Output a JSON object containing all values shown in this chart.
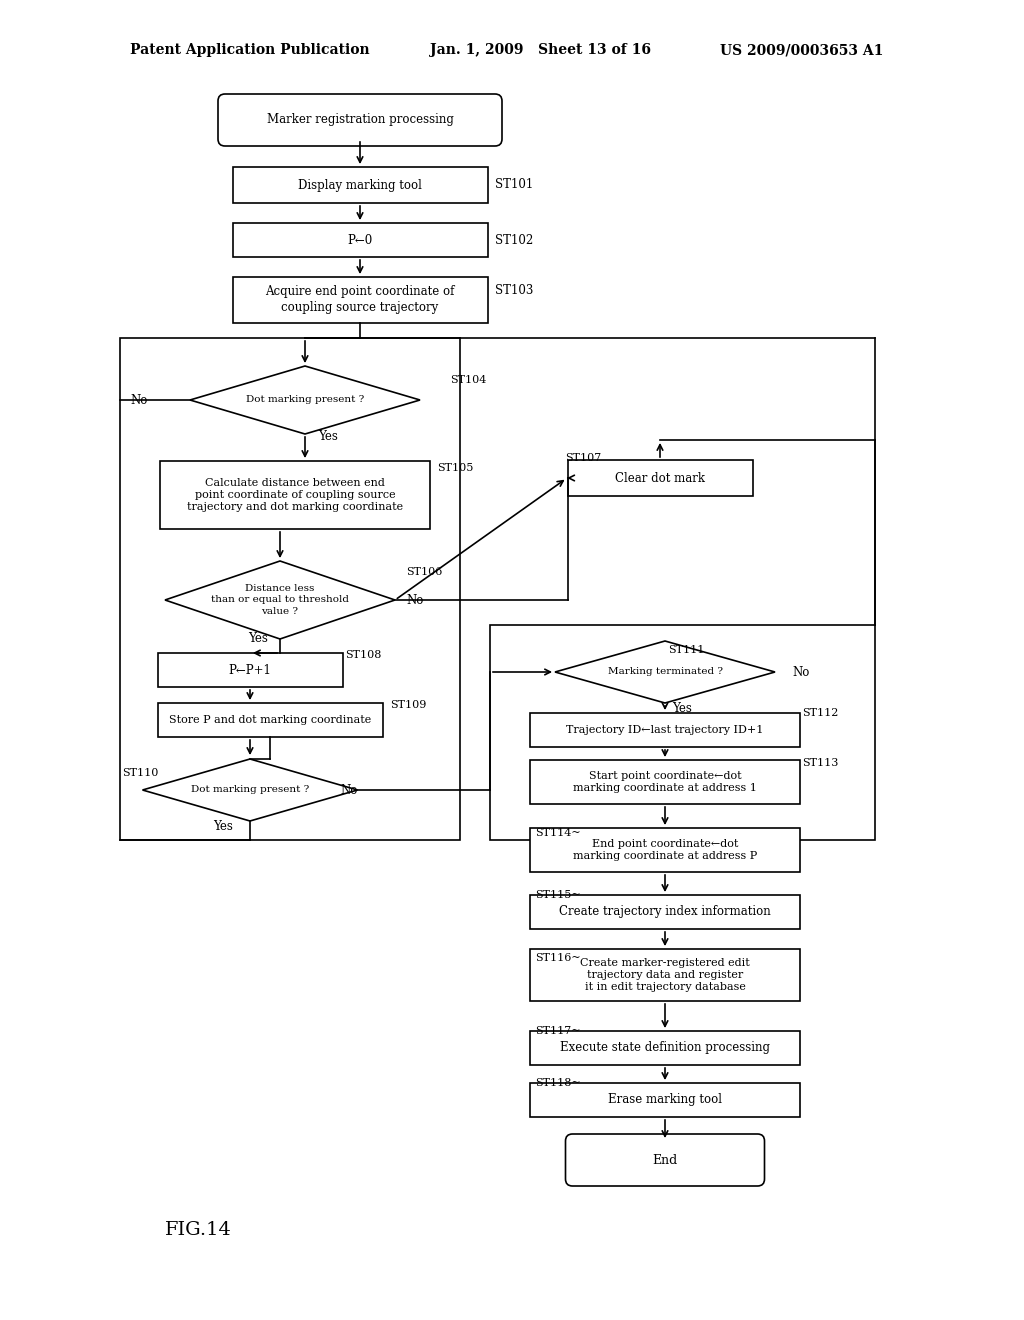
{
  "header_left": "Patent Application Publication",
  "header_mid": "Jan. 1, 2009   Sheet 13 of 16",
  "header_right": "US 2009/0003653 A1",
  "fig_label": "FIG.14",
  "bg": "#ffffff"
}
